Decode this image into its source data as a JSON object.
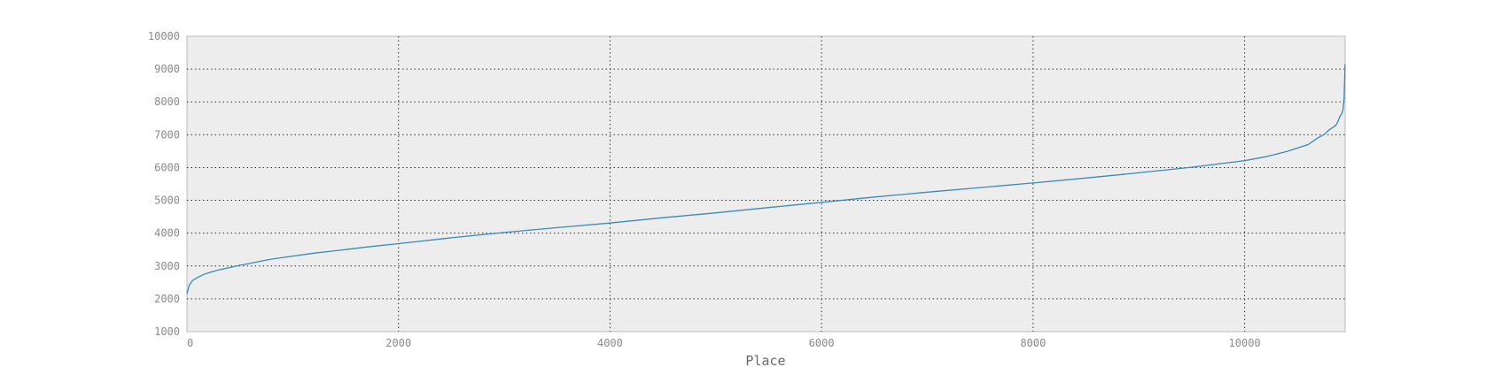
{
  "chart_data": {
    "type": "line",
    "title": "",
    "xlabel": "Place",
    "ylabel": "",
    "xlim": [
      0,
      10950
    ],
    "ylim": [
      1000,
      10000
    ],
    "xticks": [
      0,
      2000,
      4000,
      6000,
      8000,
      10000
    ],
    "yticks": [
      1000,
      2000,
      3000,
      4000,
      5000,
      6000,
      7000,
      8000,
      9000,
      10000
    ],
    "grid": true,
    "legend": "none",
    "colors": {
      "line": "#3a8ab5",
      "plot_background": "#ededed",
      "grid": "#333333"
    },
    "series": [
      {
        "x": [
          0,
          20,
          50,
          100,
          150,
          200,
          300,
          400,
          500,
          600,
          700,
          800,
          1000,
          1200,
          1500,
          1700,
          2000,
          2500,
          3000,
          3500,
          4000,
          4500,
          5000,
          5500,
          6000,
          6500,
          7000,
          7500,
          8000,
          8500,
          9000,
          9500,
          10000,
          10200,
          10400,
          10600,
          10700,
          10750,
          10800,
          10860,
          10880,
          10900,
          10920,
          10930,
          10940,
          10950
        ],
        "y": [
          2150,
          2400,
          2550,
          2650,
          2730,
          2790,
          2880,
          2950,
          3020,
          3080,
          3150,
          3210,
          3300,
          3390,
          3500,
          3580,
          3680,
          3860,
          4020,
          4170,
          4310,
          4470,
          4620,
          4780,
          4940,
          5100,
          5250,
          5390,
          5530,
          5680,
          5840,
          6010,
          6210,
          6330,
          6490,
          6700,
          6920,
          7000,
          7150,
          7280,
          7380,
          7550,
          7650,
          7750,
          8100,
          9150
        ]
      }
    ]
  }
}
